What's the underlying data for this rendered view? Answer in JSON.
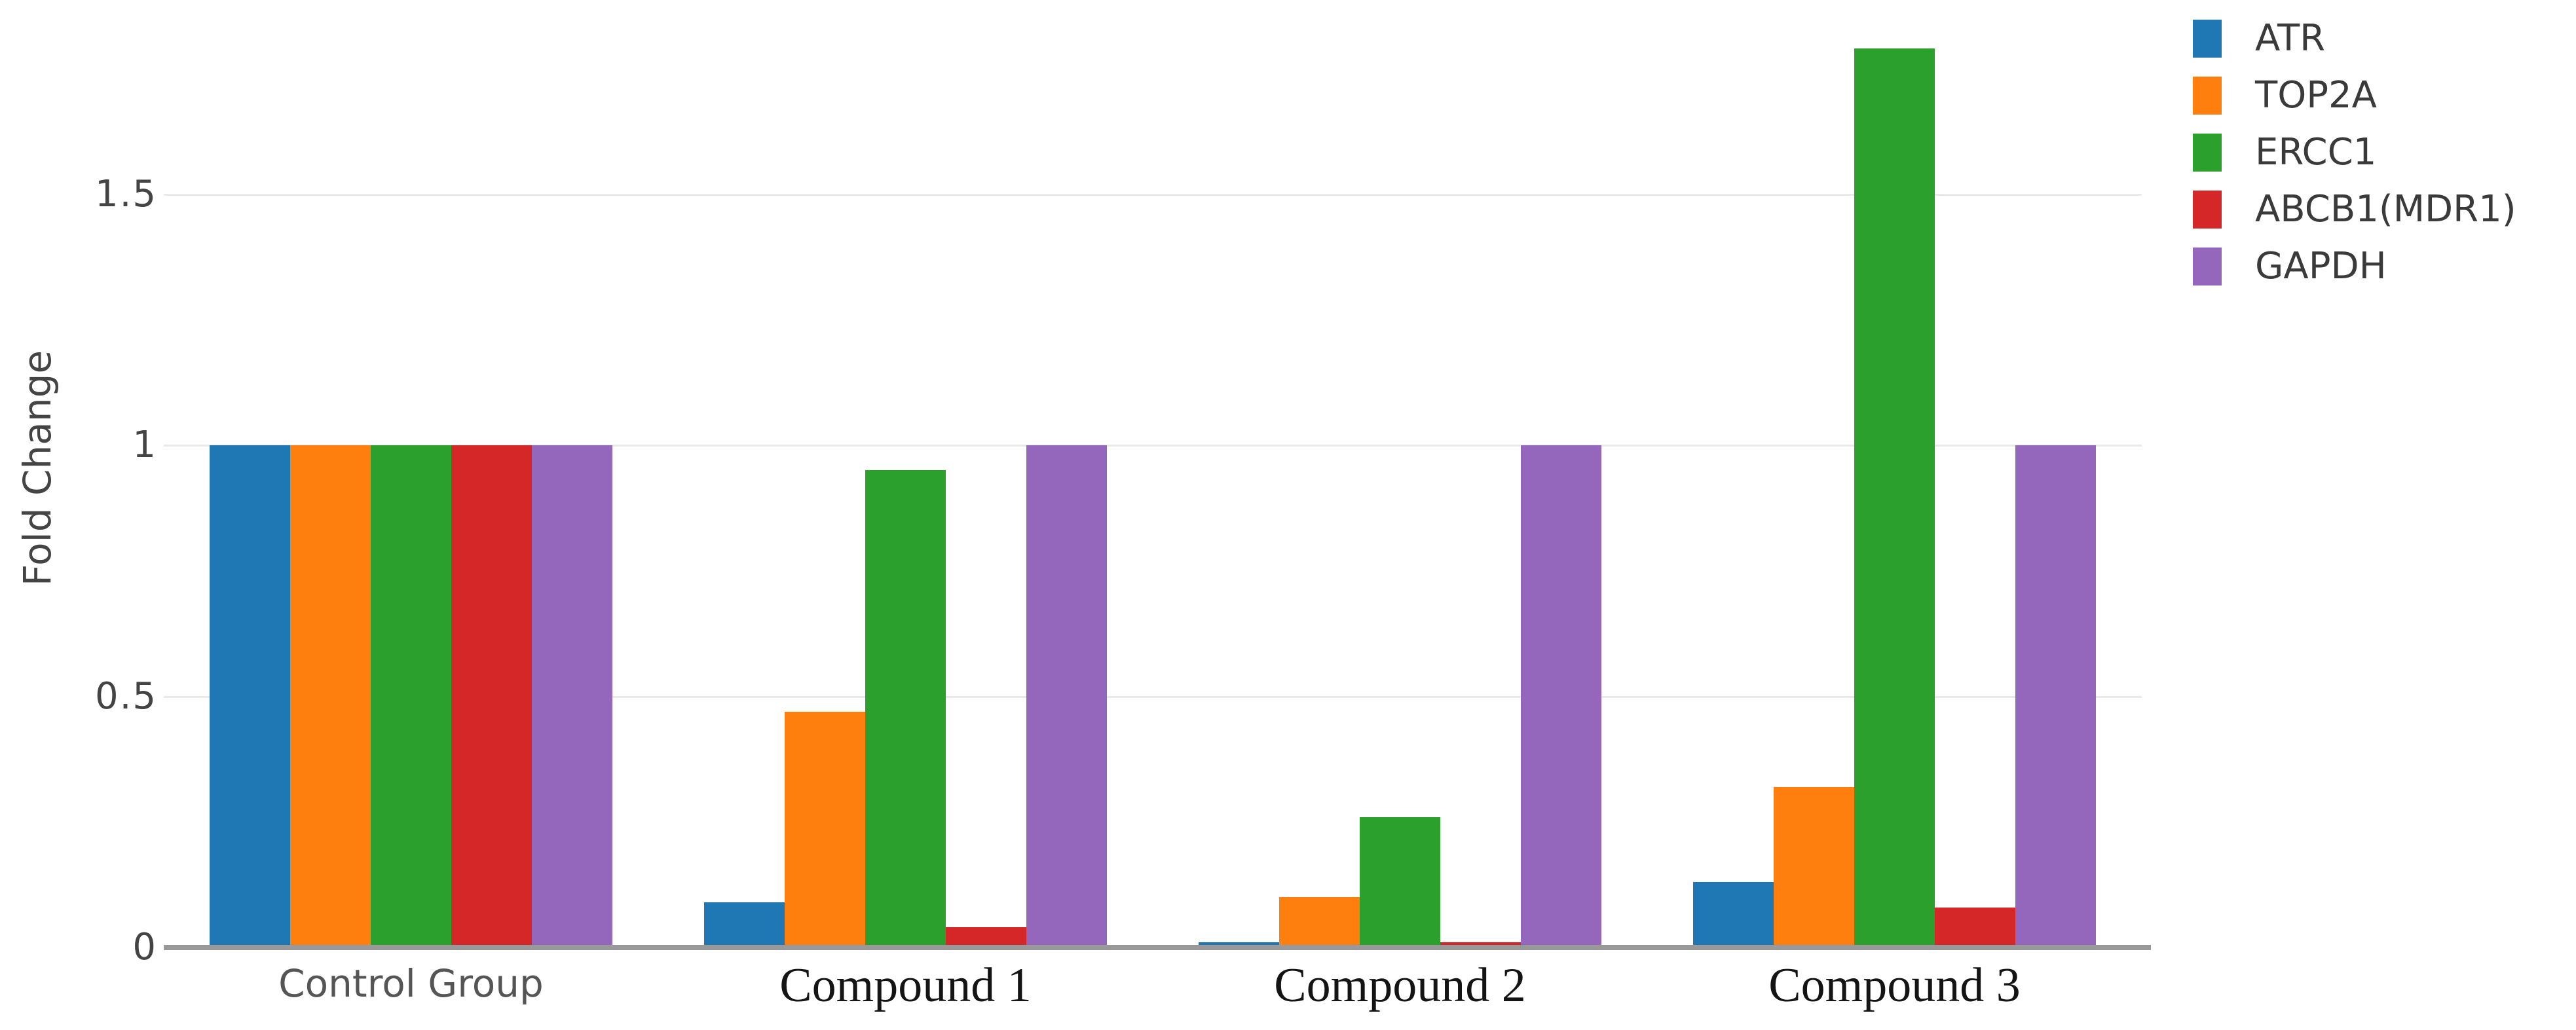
{
  "chart_data": {
    "type": "bar",
    "title": "",
    "categories": [
      "Control Group",
      "Compound 1",
      "Compound 2",
      "Compound 3"
    ],
    "category_label_styles": [
      "sans",
      "serif",
      "serif",
      "serif"
    ],
    "series": [
      {
        "name": "ATR",
        "color": "#1f77b4",
        "values": [
          1.0,
          0.09,
          0.01,
          0.13
        ]
      },
      {
        "name": "TOP2A",
        "color": "#ff7f0e",
        "values": [
          1.0,
          0.47,
          0.1,
          0.32
        ]
      },
      {
        "name": "ERCC1",
        "color": "#2ca02c",
        "values": [
          1.0,
          0.95,
          0.26,
          1.79
        ]
      },
      {
        "name": "ABCB1(MDR1)",
        "color": "#d62728",
        "values": [
          1.0,
          0.04,
          0.01,
          0.08
        ]
      },
      {
        "name": "GAPDH",
        "color": "#9467bd",
        "values": [
          1.0,
          1.0,
          1.0,
          1.0
        ]
      }
    ],
    "xlabel": "",
    "ylabel": "Fold Change",
    "yticks": [
      {
        "value": 0,
        "label": "0"
      },
      {
        "value": 0.5,
        "label": "0.5"
      },
      {
        "value": 1,
        "label": "1"
      },
      {
        "value": 1.5,
        "label": "1.5"
      }
    ],
    "ylim": [
      0,
      1.87
    ],
    "grid": "horizontal",
    "legend_position": "top-right",
    "colors": {
      "background": "#ffffff",
      "gridline": "#e9e9e9",
      "axis_line": "#999999",
      "tick_label_text": "#444444",
      "axis_title_text": "#444444",
      "legend_text": "#3a3a3a",
      "sans_category_text": "#555555",
      "serif_category_text": "#141414"
    }
  }
}
